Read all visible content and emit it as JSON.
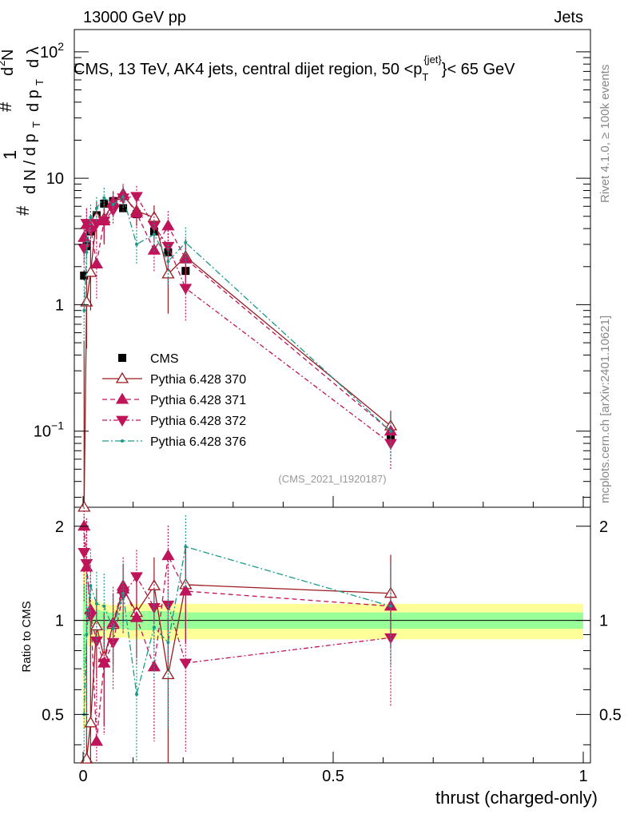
{
  "header": {
    "left": "13000 GeV pp",
    "right": "Jets"
  },
  "chart_data": {
    "type": "scatter",
    "title": "CMS, 13 TeV, AK4 jets, central dijet region, 50 <p",
    "title_sub": "T",
    "title_sup": "{jet}",
    "title_end": "}< 65 GeV",
    "xlabel": "thrust (charged-only)",
    "ylabel_main": "1/dN dN/dp_T d^2N/dp_T dλ",
    "ylabel_parts": {
      "hash1": "#",
      "one": "1",
      "dN_dpT": "d N / d p",
      "T1": "T",
      "hash2": "#",
      "dp": "d p",
      "T2": "T",
      "d2N": "d",
      "two": "2",
      "N": "N",
      "dlambda": "d λ"
    },
    "ylabel_ratio": "Ratio to CMS",
    "xlim": [
      0,
      1
    ],
    "ylim_main": [
      0.025,
      150
    ],
    "ylim_ratio": [
      0.35,
      2.3
    ],
    "x_ticks": [
      "0",
      "0.5",
      "1"
    ],
    "x_tick_values": [
      0,
      0.5,
      1
    ],
    "y_ticks_main": [
      {
        "value": 100,
        "base": "10",
        "exp": "2"
      },
      {
        "value": 10,
        "base": "10",
        "exp": ""
      },
      {
        "value": 1,
        "base": "1",
        "exp": ""
      },
      {
        "value": 0.1,
        "base": "10",
        "exp": "−1"
      }
    ],
    "y_ticks_ratio": [
      "0.5",
      "1",
      "2"
    ],
    "y_tick_ratio_values": [
      0.5,
      1,
      2
    ],
    "watermark": "(CMS_2021_I1920187)",
    "side_text_top": "Rivet 4.1.0, ≥ 100k events",
    "side_text_bottom": "mcplots.cern.ch [arXiv:2401.10621]",
    "bins": [
      {
        "lo": 0.0,
        "hi": 0.005
      },
      {
        "lo": 0.005,
        "hi": 0.01
      },
      {
        "lo": 0.01,
        "hi": 0.02
      },
      {
        "lo": 0.02,
        "hi": 0.035
      },
      {
        "lo": 0.035,
        "hi": 0.05
      },
      {
        "lo": 0.05,
        "hi": 0.07
      },
      {
        "lo": 0.07,
        "hi": 0.09
      },
      {
        "lo": 0.09,
        "hi": 0.125
      },
      {
        "lo": 0.125,
        "hi": 0.16
      },
      {
        "lo": 0.16,
        "hi": 0.18
      },
      {
        "lo": 0.18,
        "hi": 0.23
      },
      {
        "lo": 0.23,
        "hi": 1.0
      }
    ],
    "band_green": [
      0.3,
      0.12,
      0.1,
      0.08,
      0.07,
      0.06,
      0.06,
      0.07,
      0.07,
      0.07,
      0.06,
      0.06
    ],
    "band_yellow": [
      0.55,
      0.22,
      0.17,
      0.15,
      0.13,
      0.12,
      0.12,
      0.13,
      0.13,
      0.14,
      0.13,
      0.13
    ],
    "x": [
      0.002,
      0.007,
      0.015,
      0.027,
      0.042,
      0.06,
      0.08,
      0.107,
      0.142,
      0.17,
      0.205,
      0.615
    ],
    "legend": [
      {
        "name": "CMS"
      },
      {
        "name": "Pythia 6.428 370"
      },
      {
        "name": "Pythia 6.428 371"
      },
      {
        "name": "Pythia 6.428 372"
      },
      {
        "name": "Pythia 6.428 376"
      }
    ],
    "series": [
      {
        "name": "CMS",
        "color": "#000000",
        "marker": "square",
        "dash": "none",
        "values": [
          1.7,
          2.9,
          3.8,
          5.1,
          6.3,
          6.6,
          5.8,
          5.2,
          3.8,
          2.6,
          1.85,
          0.09
        ],
        "errors": [
          0.15,
          0.3,
          0.3,
          0.3,
          0.35,
          0.35,
          0.3,
          0.3,
          0.25,
          0.2,
          0.15,
          0.008
        ]
      },
      {
        "name": "Pythia 6.428 370",
        "color": "#9b1b1e",
        "marker": "triangle-up-open",
        "dash": "none",
        "values": [
          0.02,
          1.05,
          1.8,
          4.9,
          4.8,
          6.4,
          7.3,
          5.5,
          4.9,
          1.75,
          2.4,
          0.11
        ],
        "errors": [
          0.5,
          0.6,
          0.9,
          1.6,
          1.8,
          1.5,
          1.4,
          1.3,
          1.2,
          0.9,
          0.9,
          0.035
        ],
        "ratio": [
          0.01,
          0.36,
          0.47,
          0.96,
          0.76,
          0.97,
          1.26,
          1.06,
          1.29,
          0.67,
          1.3,
          1.22
        ],
        "ratio_err": [
          0.3,
          0.5,
          0.5,
          0.3,
          0.3,
          0.25,
          0.25,
          0.3,
          0.3,
          0.35,
          0.45,
          0.4
        ]
      },
      {
        "name": "Pythia 6.428 371",
        "color": "#c0145a",
        "marker": "triangle-up",
        "dash": "6,4",
        "values": [
          3.4,
          4.3,
          4.1,
          2.1,
          4.6,
          6.5,
          7.5,
          5.3,
          2.7,
          4.2,
          2.3,
          0.1
        ],
        "errors": [
          1.3,
          1.5,
          1.4,
          1.0,
          1.4,
          1.3,
          1.5,
          1.3,
          0.9,
          1.3,
          0.9,
          0.04
        ],
        "ratio": [
          2.0,
          1.48,
          1.08,
          0.41,
          0.73,
          0.98,
          1.29,
          1.02,
          0.71,
          1.61,
          1.24,
          1.11
        ],
        "ratio_err": [
          0.5,
          0.6,
          0.5,
          0.3,
          0.3,
          0.3,
          0.3,
          0.3,
          0.3,
          0.4,
          0.4,
          0.4
        ]
      },
      {
        "name": "Pythia 6.428 372",
        "color": "#c0145a",
        "marker": "triangle-down",
        "dash": "6,3,2,3",
        "values": [
          2.8,
          4.4,
          3.9,
          4.4,
          4.6,
          5.6,
          7.0,
          7.2,
          4.2,
          2.9,
          1.35,
          0.08
        ],
        "errors": [
          1.0,
          1.3,
          1.2,
          1.3,
          1.3,
          1.2,
          1.5,
          1.5,
          1.1,
          1.0,
          0.6,
          0.03
        ],
        "ratio": [
          1.65,
          1.52,
          1.03,
          0.86,
          0.73,
          0.85,
          1.21,
          1.38,
          1.1,
          1.12,
          0.73,
          0.88
        ],
        "ratio_err": [
          0.5,
          0.6,
          0.4,
          0.3,
          0.3,
          0.25,
          0.3,
          0.3,
          0.3,
          0.4,
          0.35,
          0.35
        ]
      },
      {
        "name": "Pythia 6.428 376",
        "color": "#1a9a8a",
        "marker": "dot",
        "dash": "8,3,2,3",
        "values": [
          0.9,
          2.6,
          4.9,
          5.8,
          7.0,
          6.2,
          7.1,
          3.0,
          3.6,
          2.2,
          3.1,
          0.1
        ],
        "errors": [
          0.5,
          1.0,
          1.3,
          1.3,
          1.4,
          1.3,
          1.4,
          0.9,
          1.0,
          0.8,
          1.0,
          0.04
        ],
        "ratio": [
          0.5,
          0.9,
          1.29,
          1.13,
          1.11,
          0.94,
          1.22,
          0.58,
          0.95,
          0.85,
          1.72,
          1.11
        ],
        "ratio_err": [
          0.4,
          0.5,
          0.4,
          0.3,
          0.3,
          0.25,
          0.3,
          0.3,
          0.3,
          0.4,
          0.45,
          0.4
        ]
      }
    ]
  }
}
